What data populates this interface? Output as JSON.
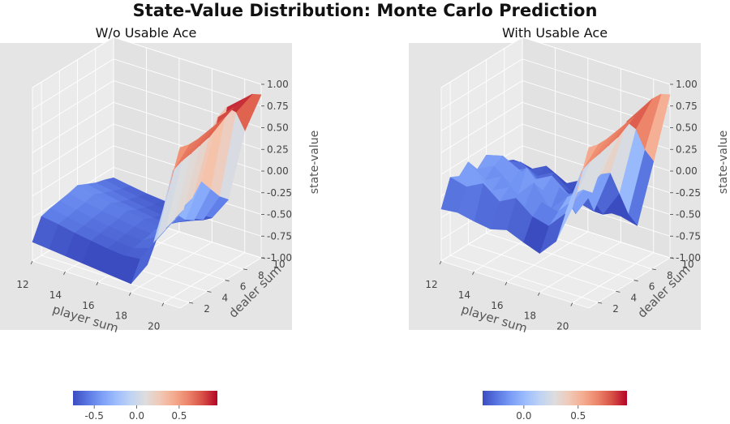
{
  "title": "State-Value Distribution: Monte Carlo Prediction",
  "chart_data": [
    {
      "type": "surface3d",
      "title": "W/o Usable Ace",
      "xlabel": "player sum",
      "ylabel": "dealer sum",
      "zlabel": "state-value",
      "x_ticks": [
        "12",
        "14",
        "16",
        "18",
        "20"
      ],
      "y_ticks": [
        "2",
        "4",
        "6",
        "8",
        "10"
      ],
      "z_ticks": [
        "1.00",
        "0.75",
        "0.50",
        "0.25",
        "0.00",
        "-0.25",
        "-0.50",
        "-0.75",
        "-1.00"
      ],
      "xlim": [
        12,
        21
      ],
      "ylim": [
        1,
        10
      ],
      "zlim": [
        -1,
        1
      ],
      "colormap": "coolwarm",
      "player_sums": [
        12,
        13,
        14,
        15,
        16,
        17,
        18,
        19,
        20,
        21
      ],
      "dealer_showing": [
        1,
        2,
        3,
        4,
        5,
        6,
        7,
        8,
        9,
        10
      ],
      "values": [
        [
          -0.78,
          -0.55,
          -0.52,
          -0.5,
          -0.48,
          -0.45,
          -0.5,
          -0.55,
          -0.58,
          -0.62
        ],
        [
          -0.8,
          -0.58,
          -0.56,
          -0.54,
          -0.52,
          -0.49,
          -0.54,
          -0.58,
          -0.62,
          -0.65
        ],
        [
          -0.82,
          -0.62,
          -0.6,
          -0.58,
          -0.56,
          -0.53,
          -0.58,
          -0.62,
          -0.65,
          -0.68
        ],
        [
          -0.84,
          -0.65,
          -0.63,
          -0.61,
          -0.59,
          -0.56,
          -0.61,
          -0.65,
          -0.68,
          -0.7
        ],
        [
          -0.86,
          -0.68,
          -0.66,
          -0.64,
          -0.62,
          -0.6,
          -0.64,
          -0.68,
          -0.7,
          -0.72
        ],
        [
          -0.88,
          -0.7,
          -0.68,
          -0.66,
          -0.64,
          -0.62,
          -0.66,
          -0.7,
          -0.72,
          -0.74
        ],
        [
          -0.9,
          -0.68,
          -0.62,
          -0.55,
          -0.5,
          -0.42,
          -0.55,
          -0.62,
          -0.68,
          -0.72
        ],
        [
          -0.62,
          -0.4,
          -0.35,
          -0.3,
          -0.25,
          -0.18,
          -0.05,
          -0.2,
          -0.35,
          -0.45
        ],
        [
          0.1,
          0.45,
          0.5,
          0.52,
          0.55,
          0.58,
          0.75,
          0.8,
          0.68,
          0.4
        ],
        [
          0.85,
          0.82,
          0.82,
          0.84,
          0.86,
          0.88,
          0.93,
          0.96,
          0.95,
          0.88
        ]
      ],
      "colorbar": {
        "ticks": [
          "-0.5",
          "0.0",
          "0.5"
        ],
        "tick_values": [
          -0.5,
          0.0,
          0.5
        ],
        "min": -0.75,
        "max": 0.95
      }
    },
    {
      "type": "surface3d",
      "title": "With Usable Ace",
      "xlabel": "player sum",
      "ylabel": "dealer sum",
      "zlabel": "state-value",
      "x_ticks": [
        "12",
        "14",
        "16",
        "18",
        "20"
      ],
      "y_ticks": [
        "2",
        "4",
        "6",
        "8",
        "10"
      ],
      "z_ticks": [
        "1.00",
        "0.75",
        "0.50",
        "0.25",
        "0.00",
        "-0.25",
        "-0.50",
        "-0.75",
        "-1.00"
      ],
      "xlim": [
        12,
        21
      ],
      "ylim": [
        1,
        10
      ],
      "zlim": [
        -1,
        1
      ],
      "colormap": "coolwarm",
      "player_sums": [
        12,
        13,
        14,
        15,
        16,
        17,
        18,
        19,
        20,
        21
      ],
      "dealer_showing": [
        1,
        2,
        3,
        4,
        5,
        6,
        7,
        8,
        9,
        10
      ],
      "values": [
        [
          -0.4,
          -0.1,
          -0.15,
          -0.05,
          -0.2,
          -0.1,
          -0.25,
          -0.3,
          -0.35,
          -0.45
        ],
        [
          -0.38,
          -0.15,
          -0.05,
          -0.2,
          -0.1,
          -0.05,
          -0.3,
          -0.25,
          -0.4,
          -0.5
        ],
        [
          -0.42,
          -0.05,
          -0.2,
          -0.1,
          -0.25,
          -0.15,
          -0.2,
          -0.35,
          -0.3,
          -0.45
        ],
        [
          -0.45,
          -0.2,
          -0.1,
          -0.25,
          0.0,
          -0.2,
          -0.35,
          -0.25,
          -0.45,
          -0.55
        ],
        [
          -0.4,
          -0.1,
          -0.25,
          -0.05,
          -0.2,
          -0.1,
          -0.3,
          -0.4,
          -0.35,
          -0.5
        ],
        [
          -0.48,
          -0.25,
          -0.15,
          -0.3,
          -0.1,
          -0.25,
          -0.4,
          -0.35,
          -0.5,
          -0.6
        ],
        [
          -0.55,
          -0.3,
          -0.2,
          -0.1,
          -0.35,
          -0.15,
          -0.45,
          -0.55,
          -0.6,
          -0.7
        ],
        [
          -0.35,
          -0.1,
          0.0,
          0.05,
          -0.05,
          0.1,
          0.05,
          -0.25,
          -0.55,
          -0.75
        ],
        [
          0.1,
          0.45,
          0.5,
          0.52,
          0.55,
          0.58,
          0.7,
          0.55,
          0.25,
          0.05
        ],
        [
          0.85,
          0.82,
          0.82,
          0.84,
          0.86,
          0.88,
          0.93,
          0.96,
          0.95,
          0.88
        ]
      ],
      "colorbar": {
        "ticks": [
          "0.0",
          "0.5"
        ],
        "tick_values": [
          0.0,
          0.5
        ],
        "min": -0.38,
        "max": 0.95
      }
    }
  ]
}
